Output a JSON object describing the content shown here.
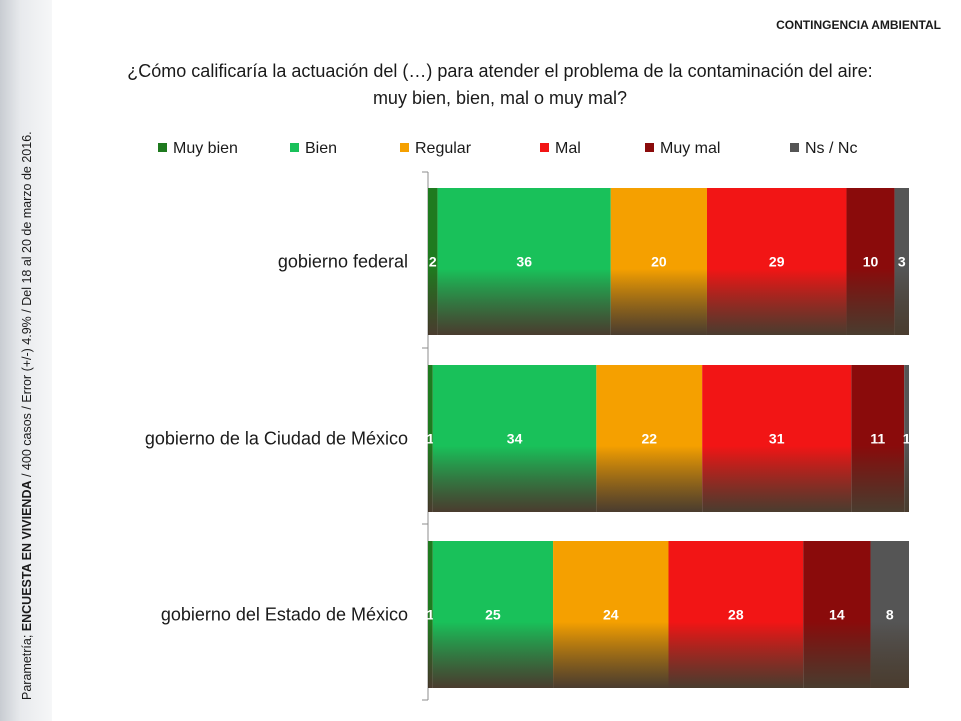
{
  "header": {
    "section_label": "CONTINGENCIA AMBIENTAL",
    "question_line1": "¿Cómo calificaría la actuación del (…) para atender el problema de la contaminación del aire:",
    "question_line2": "muy bien, bien, mal o muy mal?"
  },
  "sidebar": {
    "source_prefix": "Parametría; ",
    "survey_name": "ENCUESTA EN VIVIENDA",
    "details": " / 400 casos / Error (+/-) 4.9% / Del 18 al 20 de marzo de 2016."
  },
  "colors": {
    "muy_bien": "#1f7a1f",
    "bien": "#19c15a",
    "regular": "#f5a000",
    "mal": "#f21515",
    "muy_mal": "#8a0b0b",
    "ns_nc": "#555555"
  },
  "chart_data": {
    "type": "bar",
    "orientation": "horizontal",
    "stacked": true,
    "categories": [
      "gobierno federal",
      "gobierno de la Ciudad de México",
      "gobierno del Estado de México"
    ],
    "series": [
      {
        "name": "Muy bien",
        "color": "#1f7a1f",
        "values": [
          2,
          1,
          1
        ]
      },
      {
        "name": "Bien",
        "color": "#19c15a",
        "values": [
          36,
          34,
          25
        ]
      },
      {
        "name": "Regular",
        "color": "#f5a000",
        "values": [
          20,
          22,
          24
        ]
      },
      {
        "name": "Mal",
        "color": "#f21515",
        "values": [
          29,
          31,
          28
        ]
      },
      {
        "name": "Muy mal",
        "color": "#8a0b0b",
        "values": [
          10,
          11,
          14
        ]
      },
      {
        "name": "Ns / Nc",
        "color": "#555555",
        "values": [
          3,
          1,
          8
        ]
      }
    ],
    "xlim": [
      0,
      100
    ],
    "legend": "top",
    "grid": false
  }
}
